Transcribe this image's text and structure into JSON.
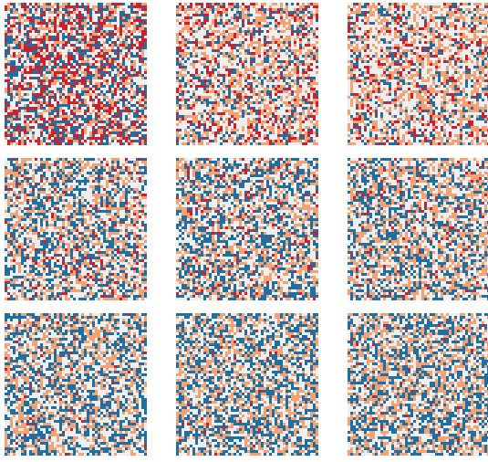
{
  "figure": {
    "layout": {
      "rows": 3,
      "cols": 3
    },
    "cells_per_side": 52,
    "colors": {
      "background": "#ffffff",
      "empty": "#efefef",
      "blue": "#1f6fa2",
      "orange": "#f4a274",
      "red": "#cf1f2e"
    },
    "panels": [
      {
        "blue": 0.25,
        "orange": 0.2,
        "red": 0.25
      },
      {
        "blue": 0.16,
        "orange": 0.3,
        "red": 0.14
      },
      {
        "blue": 0.14,
        "orange": 0.32,
        "red": 0.12
      },
      {
        "blue": 0.28,
        "orange": 0.28,
        "red": 0.06
      },
      {
        "blue": 0.3,
        "orange": 0.28,
        "red": 0.05
      },
      {
        "blue": 0.3,
        "orange": 0.29,
        "red": 0.04
      },
      {
        "blue": 0.33,
        "orange": 0.3,
        "red": 0.02
      },
      {
        "blue": 0.33,
        "orange": 0.31,
        "red": 0.01
      },
      {
        "blue": 0.33,
        "orange": 0.31,
        "red": 0.01
      }
    ]
  }
}
